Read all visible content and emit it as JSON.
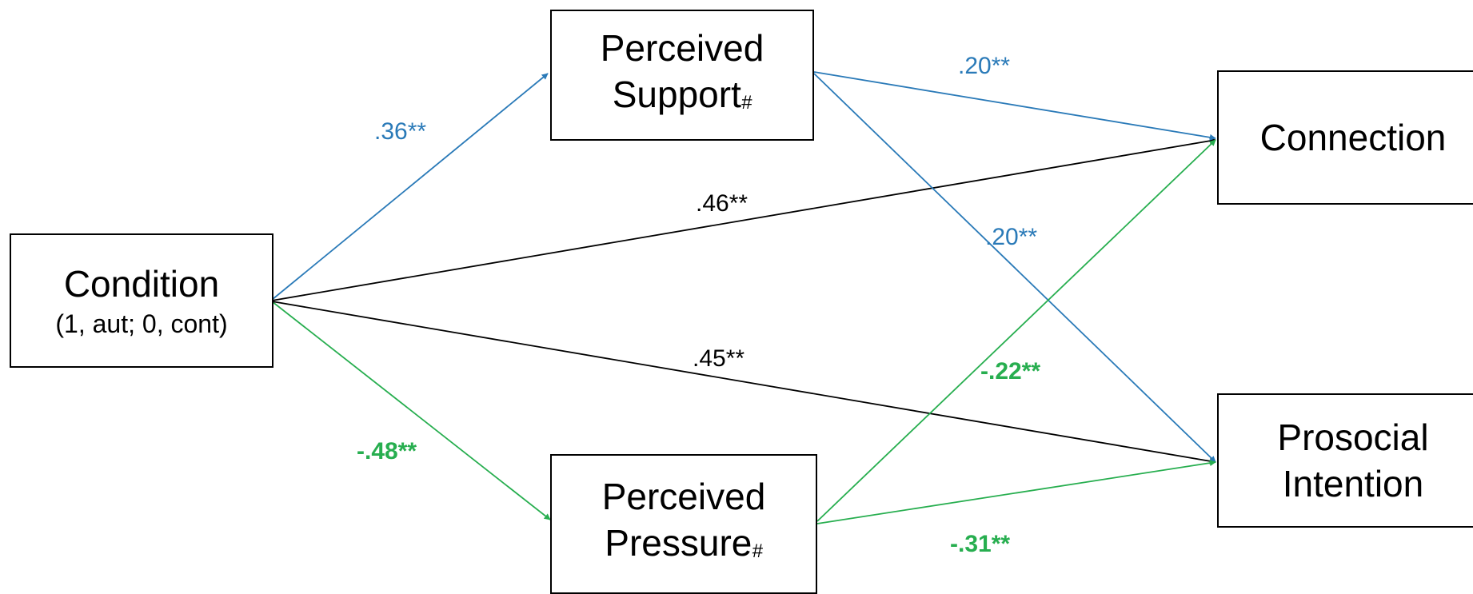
{
  "colors": {
    "support_path": "#2a7ab8",
    "pressure_path": "#27ae4f",
    "direct_path": "#000000"
  },
  "nodes": {
    "condition": {
      "line1": "Condition",
      "line2": "(1, aut; 0, cont)"
    },
    "support": {
      "line1": "Perceived",
      "line2": "Support",
      "mark": "#"
    },
    "pressure": {
      "line1": "Perceived",
      "line2": "Pressure",
      "mark": "#"
    },
    "connection": {
      "line1": "Connection"
    },
    "prosocial": {
      "line1": "Prosocial",
      "line2": "Intention"
    }
  },
  "paths": {
    "condition_support": ".36**",
    "condition_pressure": "-.48**",
    "condition_connection": ".46**",
    "condition_prosocial": ".45**",
    "support_connection": ".20**",
    "support_prosocial": ".20**",
    "pressure_connection": "-.22**",
    "pressure_prosocial": "-.31**"
  }
}
